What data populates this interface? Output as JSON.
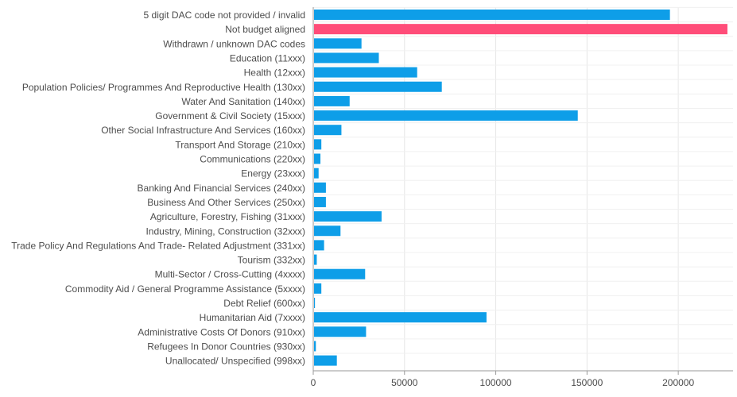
{
  "colors": {
    "bar": "#0e9ee8",
    "highlight": "#ff4d79",
    "grid": "#e6e6e6",
    "axis": "#9a9a9a",
    "label": "#4d4d4d"
  },
  "chart_data": {
    "type": "bar",
    "orientation": "horizontal",
    "title": "",
    "xlabel": "",
    "ylabel": "",
    "xlim": [
      0,
      230000
    ],
    "xticks": [
      0,
      50000,
      100000,
      150000,
      200000
    ],
    "xtick_labels": [
      "0",
      "50000",
      "100000",
      "150000",
      "200000"
    ],
    "grid": "vertical",
    "legend": "none",
    "highlight_index": 1,
    "categories": [
      "5 digit DAC code not provided / invalid",
      "Not budget aligned",
      "Withdrawn / unknown DAC codes",
      "Education (11xxx)",
      "Health (12xxx)",
      "Population Policies/ Programmes And Reproductive Health (130xx)",
      "Water And Sanitation (140xx)",
      "Government & Civil Society (15xxx)",
      "Other Social Infrastructure And Services (160xx)",
      "Transport And Storage (210xx)",
      "Communications (220xx)",
      "Energy (23xxx)",
      "Banking And Financial Services (240xx)",
      "Business And Other Services (250xx)",
      "Agriculture, Forestry, Fishing (31xxx)",
      "Industry, Mining, Construction (32xxx)",
      "Trade Policy And Regulations And Trade- Related Adjustment (331xx)",
      "Tourism (332xx)",
      "Multi-Sector / Cross-Cutting (4xxxx)",
      "Commodity Aid / General Programme Assistance (5xxxx)",
      "Debt Relief (600xx)",
      "Humanitarian Aid (7xxxx)",
      "Administrative Costs Of Donors (910xx)",
      "Refugees In Donor Countries (930xx)",
      "Unallocated/ Unspecified (998xx)"
    ],
    "values": [
      195000,
      226500,
      26000,
      35500,
      56500,
      70000,
      19500,
      144500,
      15000,
      4000,
      3500,
      2500,
      6500,
      6500,
      37000,
      14500,
      5500,
      1500,
      28000,
      4000,
      500,
      94500,
      28500,
      1000,
      12500
    ]
  }
}
